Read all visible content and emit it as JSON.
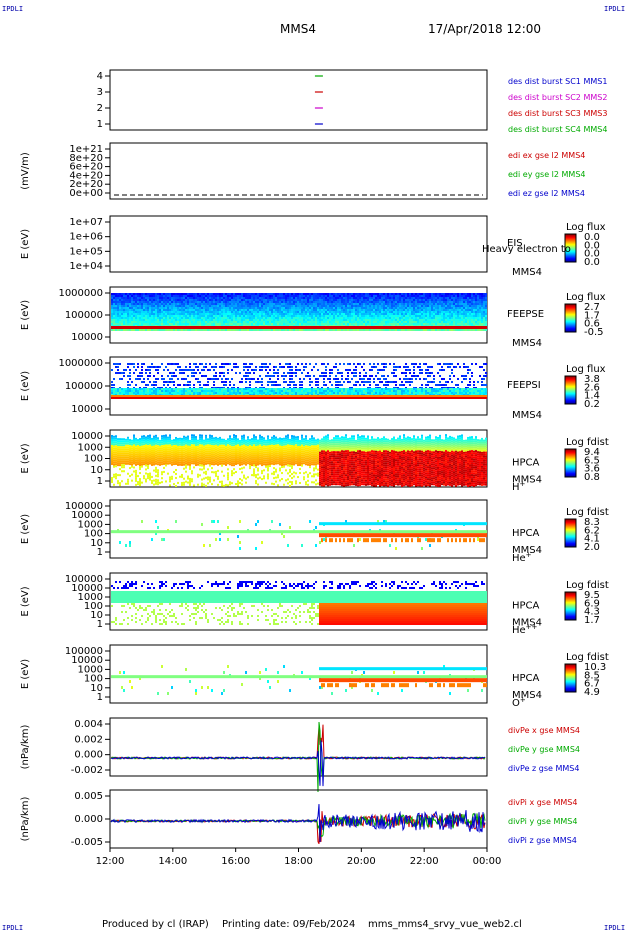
{
  "header": {
    "corner_tl": "IPDLI",
    "corner_tr": "IPDLI",
    "corner_bl": "IPDLI",
    "corner_br": "IPDLI",
    "spacecraft": "MMS4",
    "datetime": "17/Apr/2018 12:00"
  },
  "footer": {
    "produced_by": "Produced by cl (IRAP)",
    "printing_date": "Printing date: 09/Feb/2024",
    "filename": "mms_mms4_srvy_vue_web2.cl"
  },
  "chart_data": {
    "type": "multi-panel time series",
    "x": {
      "ticks": [
        "12:00",
        "14:00",
        "16:00",
        "18:00",
        "20:00",
        "22:00",
        "00:00"
      ],
      "range_hours": [
        12,
        24
      ]
    },
    "panels": [
      {
        "id": "burst",
        "type": "line",
        "ylabel": "",
        "yticks": [
          "4",
          "3",
          "2",
          "1"
        ],
        "ylim": [
          0.5,
          4.5
        ],
        "legend": [
          {
            "label": "des dist burst SC1 MMS1",
            "color": "#0000cc"
          },
          {
            "label": "des dist burst SC2 MMS2",
            "color": "#cc00cc"
          },
          {
            "label": "des dist burst SC3 MMS3",
            "color": "#cc0000"
          },
          {
            "label": "des dist burst SC4 MMS4",
            "color": "#00aa00"
          }
        ],
        "marks": [
          {
            "time_h": 18.65,
            "level": 4,
            "color": "#00aa00"
          },
          {
            "time_h": 18.65,
            "level": 3,
            "color": "#cc0000"
          },
          {
            "time_h": 18.65,
            "level": 2,
            "color": "#cc00cc"
          },
          {
            "time_h": 18.65,
            "level": 1,
            "color": "#0000cc"
          }
        ]
      },
      {
        "id": "edi",
        "type": "line",
        "ylabel": "(mV/m)",
        "yticks": [
          "1e+21",
          "8e+20",
          "6e+20",
          "4e+20",
          "2e+20",
          "0e+00"
        ],
        "ylim": [
          0,
          1e+21
        ],
        "legend": [
          {
            "label": "edi ex gse l2 MMS4",
            "color": "#cc0000"
          },
          {
            "label": "edi ey gse l2 MMS4",
            "color": "#00aa00"
          },
          {
            "label": "edi ez gse l2 MMS4",
            "color": "#0000cc"
          }
        ]
      },
      {
        "id": "eis",
        "type": "heatmap",
        "ylabel": "E (eV)",
        "yticks": [
          "1e+07",
          "1e+06",
          "1e+05",
          "1e+04"
        ],
        "scale": "log",
        "instrument": "EIS",
        "subtitle": "Heavy electron to",
        "sc": "MMS4",
        "cbar_title": "Log flux",
        "cbar_values": [
          "0.0",
          "0.0",
          "0.0",
          "0.0"
        ]
      },
      {
        "id": "feepse",
        "type": "heatmap",
        "ylabel": "E (eV)",
        "yticks": [
          "1000000",
          "100000",
          "10000"
        ],
        "scale": "log",
        "instrument": "FEEPSE",
        "sc": "MMS4",
        "cbar_title": "Log flux",
        "cbar_values": [
          "2.7",
          "1.7",
          "0.6",
          "-0.5"
        ]
      },
      {
        "id": "feepsi",
        "type": "heatmap",
        "ylabel": "E (eV)",
        "yticks": [
          "1000000",
          "100000",
          "10000"
        ],
        "scale": "log",
        "instrument": "FEEPSI",
        "sc": "MMS4",
        "cbar_title": "Log flux",
        "cbar_values": [
          "3.8",
          "2.6",
          "1.4",
          "0.2"
        ]
      },
      {
        "id": "hpca_h",
        "type": "heatmap",
        "ylabel": "E (eV)",
        "yticks": [
          "10000",
          "1000",
          "100",
          "10",
          "1"
        ],
        "scale": "log",
        "instrument": "HPCA",
        "sc": "MMS4",
        "species": "H",
        "species_sup": "+",
        "cbar_title": "Log fdist",
        "cbar_values": [
          "9.4",
          "6.5",
          "3.6",
          "0.8"
        ]
      },
      {
        "id": "hpca_he",
        "type": "heatmap",
        "ylabel": "E (eV)",
        "yticks": [
          "100000",
          "10000",
          "1000",
          "100",
          "10",
          "1"
        ],
        "scale": "log",
        "instrument": "HPCA",
        "sc": "MMS4",
        "species": "He",
        "species_sup": "+",
        "cbar_title": "Log fdist",
        "cbar_values": [
          "8.3",
          "6.2",
          "4.1",
          "2.0"
        ]
      },
      {
        "id": "hpca_he2",
        "type": "heatmap",
        "ylabel": "E (eV)",
        "yticks": [
          "100000",
          "10000",
          "1000",
          "100",
          "10",
          "1"
        ],
        "scale": "log",
        "instrument": "HPCA",
        "sc": "MMS4",
        "species": "He",
        "species_sup": "++",
        "cbar_title": "Log fdist",
        "cbar_values": [
          "9.5",
          "6.9",
          "4.3",
          "1.7"
        ]
      },
      {
        "id": "hpca_o",
        "type": "heatmap",
        "ylabel": "E (eV)",
        "yticks": [
          "100000",
          "10000",
          "1000",
          "100",
          "10",
          "1"
        ],
        "scale": "log",
        "instrument": "HPCA",
        "sc": "MMS4",
        "species": "O",
        "species_sup": "+",
        "cbar_title": "Log fdist",
        "cbar_values": [
          "10.3",
          "8.5",
          "6.7",
          "4.9"
        ]
      },
      {
        "id": "divpe",
        "type": "line",
        "ylabel": "(nPa/km)",
        "yticks": [
          "0.004",
          "0.002",
          "0.000",
          "-0.002"
        ],
        "ylim": [
          -0.0025,
          0.005
        ],
        "legend": [
          {
            "label": "divPe x gse MMS4",
            "color": "#cc0000"
          },
          {
            "label": "divPe y gse MMS4",
            "color": "#00aa00"
          },
          {
            "label": "divPe z gse MMS4",
            "color": "#0000cc"
          }
        ],
        "event_time_h": 18.7,
        "event_peak": 0.0048
      },
      {
        "id": "divpi",
        "type": "line",
        "ylabel": "(nPa/km)",
        "yticks": [
          "0.005",
          "0.000",
          "-0.005"
        ],
        "ylim": [
          -0.008,
          0.008
        ],
        "legend": [
          {
            "label": "divPi x gse MMS4",
            "color": "#cc0000"
          },
          {
            "label": "divPi y gse MMS4",
            "color": "#00aa00"
          },
          {
            "label": "divPi z gse MMS4",
            "color": "#0000cc"
          }
        ],
        "event_time_h": 18.7,
        "event_peak": 0.0065
      }
    ]
  }
}
